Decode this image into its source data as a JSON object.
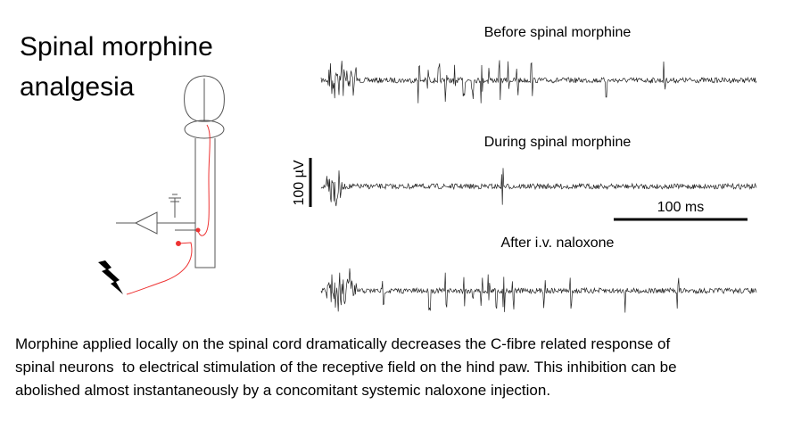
{
  "title": {
    "lines": [
      "Spinal morphine",
      "analgesia"
    ]
  },
  "traces": [
    {
      "label": "Before spinal morphine"
    },
    {
      "label": "During spinal morphine"
    },
    {
      "label": "After i.v. naloxone"
    }
  ],
  "scale_bars": {
    "voltage": "100 µV",
    "time": "100 ms"
  },
  "caption": {
    "lines": [
      "Morphine applied locally on the spinal cord dramatically decreases the C-fibre related response of",
      "spinal neurons  to electrical stimulation of the receptive field on the hind paw. This inhibition can be",
      "abolished almost instantaneously by a concomitant systemic naloxone injection."
    ]
  }
}
